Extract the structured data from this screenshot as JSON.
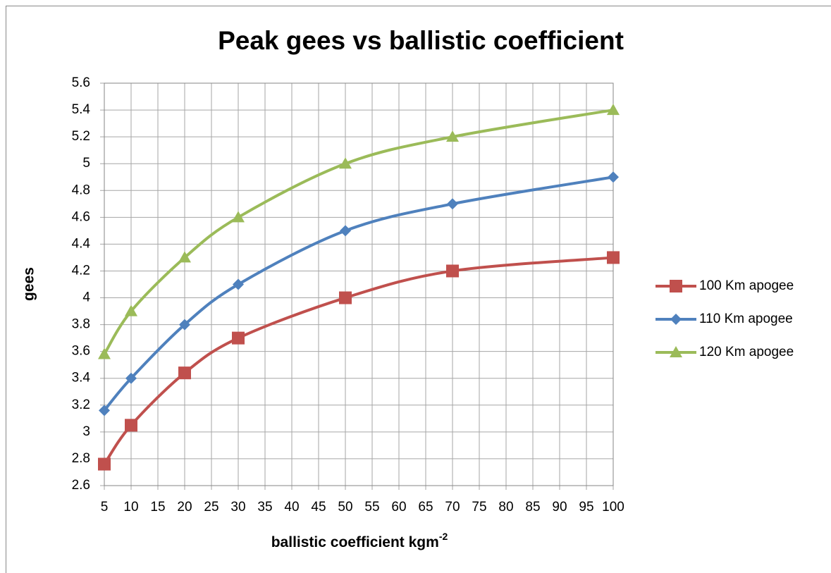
{
  "chart_data": {
    "type": "line",
    "title": "Peak gees vs ballistic coefficient",
    "x_label": "ballistic coefficient kgm",
    "x_label_superscript": "-2",
    "y_label": "gees",
    "x": [
      5,
      10,
      20,
      30,
      50,
      70,
      100
    ],
    "series": [
      {
        "name": "100 Km apogee",
        "color": "#c0504d",
        "marker": "square",
        "values": [
          2.76,
          3.05,
          3.44,
          3.7,
          4.0,
          4.2,
          4.3
        ]
      },
      {
        "name": "110 Km apogee",
        "color": "#4f81bd",
        "marker": "diamond",
        "values": [
          3.16,
          3.4,
          3.8,
          4.1,
          4.5,
          4.7,
          4.9
        ]
      },
      {
        "name": "120 Km apogee",
        "color": "#9bbb59",
        "marker": "triangle",
        "values": [
          3.58,
          3.9,
          4.3,
          4.6,
          5.0,
          5.2,
          5.4
        ]
      }
    ],
    "smooth": true,
    "xlim": [
      5,
      100
    ],
    "xticks": [
      5,
      10,
      15,
      20,
      25,
      30,
      35,
      40,
      45,
      50,
      55,
      60,
      65,
      70,
      75,
      80,
      85,
      90,
      95,
      100
    ],
    "ylim": [
      2.6,
      5.6
    ],
    "yticks": [
      2.6,
      2.8,
      3,
      3.2,
      3.4,
      3.6,
      3.8,
      4,
      4.2,
      4.4,
      4.6,
      4.8,
      5,
      5.2,
      5.4,
      5.6
    ],
    "grid": true,
    "legend": "right"
  }
}
